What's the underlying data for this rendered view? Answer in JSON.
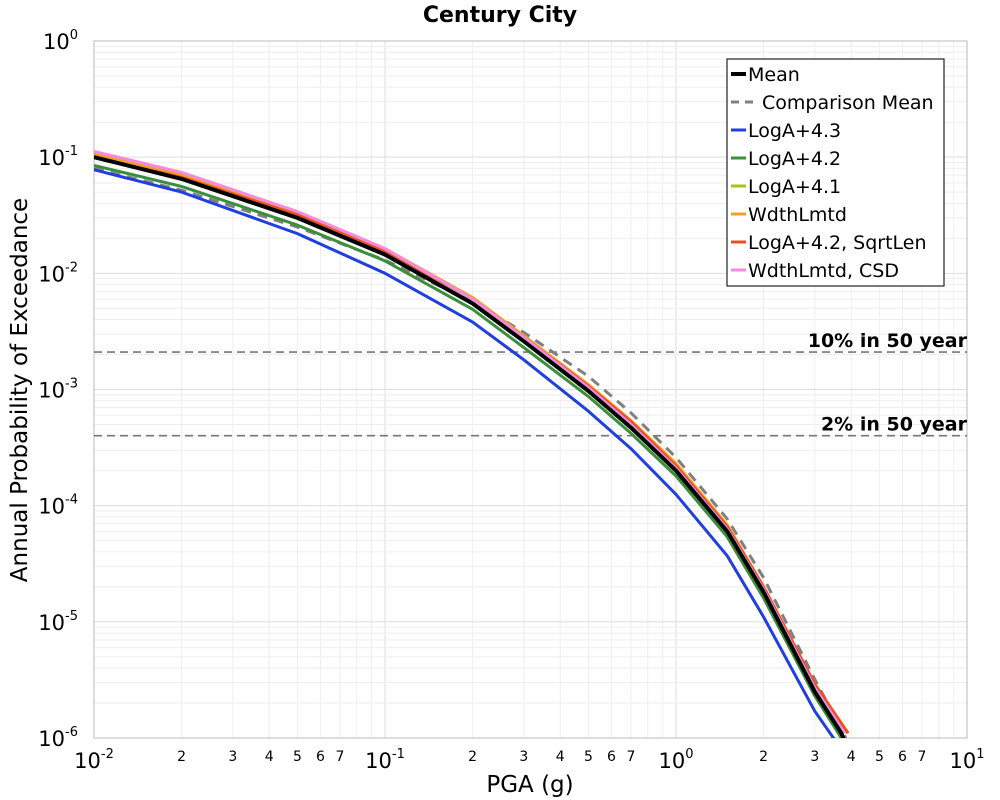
{
  "chart_data": {
    "type": "line",
    "title": "Century City",
    "xlabel": "PGA (g)",
    "ylabel": "Annual Probability of Exceedance",
    "xscale": "log",
    "yscale": "log",
    "xlim": [
      0.01,
      10
    ],
    "ylim": [
      1e-06,
      1
    ],
    "grid": true,
    "legend_position": "top-right",
    "x_major_ticks": [
      {
        "value": 0.01,
        "base": "10",
        "exp": "-2"
      },
      {
        "value": 0.1,
        "base": "10",
        "exp": "-1"
      },
      {
        "value": 1,
        "base": "10",
        "exp": "0"
      },
      {
        "value": 10,
        "base": "10",
        "exp": "1"
      }
    ],
    "x_minor_ticks": [
      {
        "value": 0.02,
        "label": "2"
      },
      {
        "value": 0.03,
        "label": "3"
      },
      {
        "value": 0.04,
        "label": "4"
      },
      {
        "value": 0.05,
        "label": "5"
      },
      {
        "value": 0.06,
        "label": "6"
      },
      {
        "value": 0.07,
        "label": "7"
      },
      {
        "value": 0.2,
        "label": "2"
      },
      {
        "value": 0.3,
        "label": "3"
      },
      {
        "value": 0.4,
        "label": "4"
      },
      {
        "value": 0.5,
        "label": "5"
      },
      {
        "value": 0.6,
        "label": "6"
      },
      {
        "value": 0.7,
        "label": "7"
      },
      {
        "value": 2,
        "label": "2"
      },
      {
        "value": 3,
        "label": "3"
      },
      {
        "value": 4,
        "label": "4"
      },
      {
        "value": 5,
        "label": "5"
      },
      {
        "value": 6,
        "label": "6"
      },
      {
        "value": 7,
        "label": "7"
      }
    ],
    "y_major_ticks": [
      {
        "value": 1,
        "base": "10",
        "exp": "0"
      },
      {
        "value": 0.1,
        "base": "10",
        "exp": "-1"
      },
      {
        "value": 0.01,
        "base": "10",
        "exp": "-2"
      },
      {
        "value": 0.001,
        "base": "10",
        "exp": "-3"
      },
      {
        "value": 0.0001,
        "base": "10",
        "exp": "-4"
      },
      {
        "value": 1e-05,
        "base": "10",
        "exp": "-5"
      },
      {
        "value": 1e-06,
        "base": "10",
        "exp": "-6"
      }
    ],
    "reference_lines": [
      {
        "label": "10% in 50 year",
        "y": 0.0021,
        "color": "#777777"
      },
      {
        "label": "2% in 50 year",
        "y": 0.0004,
        "color": "#777777"
      }
    ],
    "series": [
      {
        "name": "Mean",
        "color": "#000000",
        "width": 4,
        "dash": "",
        "x": [
          0.01,
          0.02,
          0.05,
          0.1,
          0.2,
          0.3,
          0.5,
          0.7,
          1.0,
          1.5,
          2.0,
          3.0,
          3.7,
          4.0
        ],
        "y": [
          0.1,
          0.065,
          0.03,
          0.0145,
          0.0055,
          0.0026,
          0.00097,
          0.00047,
          0.0002,
          6e-05,
          1.8e-05,
          2.5e-06,
          1.1e-06,
          7e-07
        ]
      },
      {
        "name": "Comparison Mean",
        "color": "#808080",
        "width": 3,
        "dash": "10,7",
        "x": [
          0.01,
          0.02,
          0.05,
          0.1,
          0.2,
          0.3,
          0.5,
          0.7,
          1.0,
          1.5,
          2.0,
          3.0,
          3.7,
          4.0
        ],
        "y": [
          0.08,
          0.052,
          0.025,
          0.013,
          0.0057,
          0.0031,
          0.0013,
          0.00063,
          0.00026,
          7.7e-05,
          2.4e-05,
          3.2e-06,
          1.2e-06,
          8e-07
        ]
      },
      {
        "name": "LogA+4.3",
        "color": "#1f3fe0",
        "width": 3,
        "dash": "",
        "x": [
          0.01,
          0.02,
          0.05,
          0.1,
          0.2,
          0.3,
          0.5,
          0.7,
          1.0,
          1.5,
          2.0,
          3.0,
          3.7
        ],
        "y": [
          0.078,
          0.05,
          0.022,
          0.01,
          0.0038,
          0.0018,
          0.00065,
          0.00031,
          0.000125,
          3.7e-05,
          1.1e-05,
          1.7e-06,
          8e-07
        ]
      },
      {
        "name": "LogA+4.2",
        "color": "#3a8f3a",
        "width": 3,
        "dash": "",
        "x": [
          0.01,
          0.02,
          0.05,
          0.1,
          0.2,
          0.3,
          0.5,
          0.7,
          1.0,
          1.5,
          2.0,
          3.0,
          3.8
        ],
        "y": [
          0.085,
          0.056,
          0.026,
          0.0128,
          0.0049,
          0.0023,
          0.00087,
          0.00042,
          0.00018,
          5.4e-05,
          1.6e-05,
          2.3e-06,
          9e-07
        ]
      },
      {
        "name": "LogA+4.1",
        "color": "#a8c020",
        "width": 3,
        "dash": "",
        "x": [
          0.01,
          0.02,
          0.05,
          0.1,
          0.2,
          0.3,
          0.5,
          0.7,
          1.0,
          1.5,
          2.0,
          3.0,
          3.8
        ],
        "y": [
          0.105,
          0.07,
          0.033,
          0.016,
          0.006,
          0.0028,
          0.00105,
          0.0005,
          0.00021,
          6.3e-05,
          1.9e-05,
          2.7e-06,
          1.1e-06
        ]
      },
      {
        "name": "WdthLmtd",
        "color": "#f0a020",
        "width": 3,
        "dash": "",
        "x": [
          0.01,
          0.02,
          0.05,
          0.1,
          0.2,
          0.3,
          0.5,
          0.7,
          1.0,
          1.5,
          2.0,
          3.0,
          3.9
        ],
        "y": [
          0.106,
          0.071,
          0.034,
          0.0163,
          0.0062,
          0.0029,
          0.0011,
          0.00054,
          0.00023,
          6.8e-05,
          2e-05,
          2.9e-06,
          1.1e-06
        ]
      },
      {
        "name": "LogA+4.2, SqrtLen",
        "color": "#e85020",
        "width": 3,
        "dash": "",
        "x": [
          0.01,
          0.02,
          0.05,
          0.1,
          0.2,
          0.3,
          0.5,
          0.7,
          1.0,
          1.5,
          2.0,
          3.0,
          3.9
        ],
        "y": [
          0.1,
          0.067,
          0.032,
          0.0155,
          0.006,
          0.0028,
          0.00107,
          0.00053,
          0.00022,
          6.6e-05,
          2e-05,
          2.9e-06,
          1.1e-06
        ]
      },
      {
        "name": "WdthLmtd, CSD",
        "color": "#f58ae0",
        "width": 3,
        "dash": "",
        "x": [
          0.01,
          0.02,
          0.05,
          0.1,
          0.2,
          0.3,
          0.5,
          0.7,
          1.0,
          1.5,
          2.0,
          3.0,
          3.8
        ],
        "y": [
          0.112,
          0.074,
          0.034,
          0.0163,
          0.006,
          0.0028,
          0.00104,
          0.0005,
          0.00021,
          6.3e-05,
          1.9e-05,
          2.7e-06,
          1.1e-06
        ]
      }
    ]
  }
}
